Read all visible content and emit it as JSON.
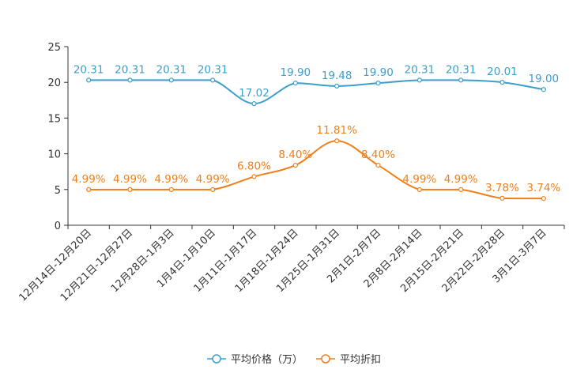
{
  "chart_data": {
    "type": "line",
    "title": "",
    "xlabel": "",
    "ylabel": "",
    "ylim": [
      0,
      25
    ],
    "yticks": [
      0,
      5,
      10,
      15,
      20,
      25
    ],
    "categories": [
      "12月14日-12月20日",
      "12月21日-12月27日",
      "12月28日-1月3日",
      "1月4日-1月10日",
      "1月11日-1月17日",
      "1月18日-1月24日",
      "1月25日-1月31日",
      "2月1日-2月7日",
      "2月8日-2月14日",
      "2月15日-2月21日",
      "2月22日-2月28日",
      "3月1日-3月7日"
    ],
    "series": [
      {
        "name": "平均价格（万）",
        "color": "#3a9fcc",
        "values": [
          20.31,
          20.31,
          20.31,
          20.31,
          17.02,
          19.9,
          19.48,
          19.9,
          20.31,
          20.31,
          20.01,
          19.0
        ],
        "labels": [
          "20.31",
          "20.31",
          "20.31",
          "20.31",
          "17.02",
          "19.90",
          "19.48",
          "19.90",
          "20.31",
          "20.31",
          "20.01",
          "19.00"
        ]
      },
      {
        "name": "平均折扣",
        "color": "#f07f1a",
        "values": [
          4.99,
          4.99,
          4.99,
          4.99,
          6.8,
          8.4,
          11.81,
          8.4,
          4.99,
          4.99,
          3.78,
          3.74
        ],
        "labels": [
          "4.99%",
          "4.99%",
          "4.99%",
          "4.99%",
          "6.80%",
          "8.40%",
          "11.81%",
          "8.40%",
          "4.99%",
          "4.99%",
          "3.78%",
          "3.74%"
        ]
      }
    ],
    "legend_position": "bottom-center",
    "grid": false
  }
}
